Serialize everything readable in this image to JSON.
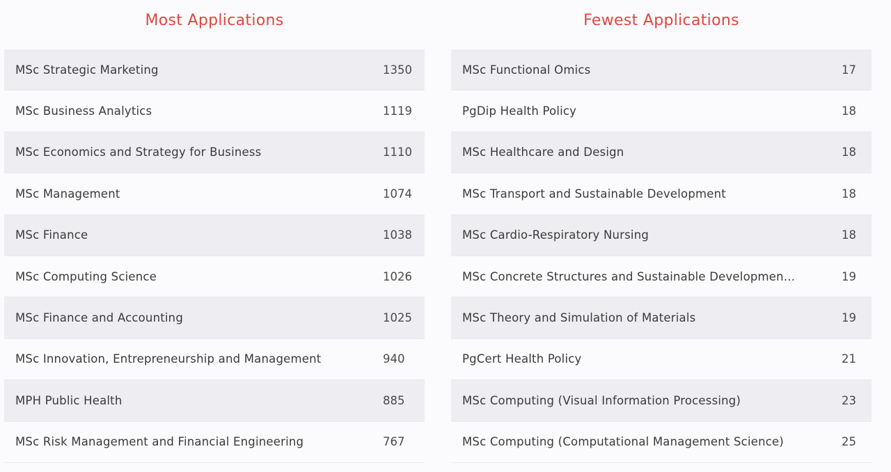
{
  "most": {
    "title": "Most Applications",
    "rows": [
      {
        "name": "MSc Strategic Marketing",
        "count": "1350"
      },
      {
        "name": "MSc Business Analytics",
        "count": "1119"
      },
      {
        "name": "MSc Economics and Strategy for Business",
        "count": "1110"
      },
      {
        "name": "MSc Management",
        "count": "1074"
      },
      {
        "name": "MSc Finance",
        "count": "1038"
      },
      {
        "name": "MSc Computing Science",
        "count": "1026"
      },
      {
        "name": "MSc Finance and Accounting",
        "count": "1025"
      },
      {
        "name": "MSc Innovation, Entrepreneurship and Management",
        "count": "940"
      },
      {
        "name": "MPH Public Health",
        "count": "885"
      },
      {
        "name": "MSc Risk Management and Financial Engineering",
        "count": "767"
      }
    ]
  },
  "fewest": {
    "title": "Fewest Applications",
    "rows": [
      {
        "name": "MSc Functional Omics",
        "count": "17"
      },
      {
        "name": "PgDip Health Policy",
        "count": "18"
      },
      {
        "name": "MSc Healthcare and Design",
        "count": "18"
      },
      {
        "name": "MSc Transport and Sustainable Development",
        "count": "18"
      },
      {
        "name": "MSc Cardio-Respiratory Nursing",
        "count": "18"
      },
      {
        "name": "MSc Concrete Structures and Sustainable Developmen...",
        "count": "19"
      },
      {
        "name": "MSc Theory and Simulation of Materials",
        "count": "19"
      },
      {
        "name": "PgCert Health Policy",
        "count": "21"
      },
      {
        "name": "MSc Computing (Visual Information Processing)",
        "count": "23"
      },
      {
        "name": "MSc Computing (Computational Management Science)",
        "count": "25"
      }
    ]
  }
}
